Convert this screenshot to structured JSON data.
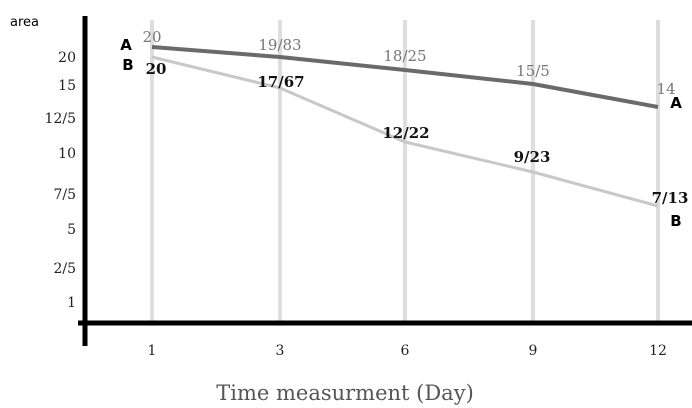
{
  "chart_data": {
    "type": "line",
    "title": "",
    "xlabel": "Time measurment (Day)",
    "ylabel": "area",
    "categories": [
      "1",
      "3",
      "6",
      "9",
      "12"
    ],
    "yticks": [
      "1",
      "2/5",
      "5",
      "7/5",
      "10",
      "12/5",
      "15",
      "20"
    ],
    "ylim": [
      0,
      22
    ],
    "grid": "vertical",
    "series": [
      {
        "name": "A",
        "values": [
          20,
          19.83,
          18.25,
          15.5,
          14
        ],
        "labels": [
          "20",
          "19/83",
          "18/25",
          "15/5",
          "14"
        ],
        "color": "#6a6a6a"
      },
      {
        "name": "B",
        "values": [
          20,
          17.67,
          12.22,
          9.23,
          7.13
        ],
        "labels": [
          "20",
          "17/67",
          "12/22",
          "9/23",
          "7/13"
        ],
        "color": "#c8c8c8"
      }
    ]
  }
}
